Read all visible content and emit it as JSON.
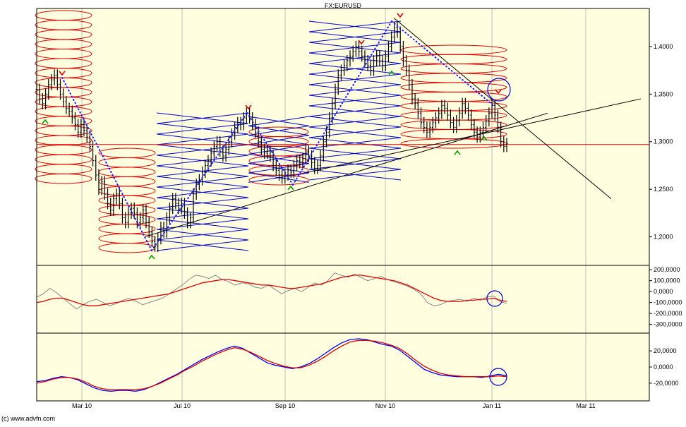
{
  "title": "FX:EURUSD",
  "footer": "(c) www.advfn.com",
  "colors": {
    "background": "#ffffe0",
    "price": "#000000",
    "ellipse": "#e00000",
    "cross": "#0000cc",
    "dots": "#1a1aff",
    "indicator_gray": "#888888",
    "indicator_red": "#e00000",
    "indicator_blue": "#0000ee",
    "marker_up": "#00a000",
    "marker_down": "#e00000",
    "circle": "#0000cc"
  },
  "chart_data": [
    {
      "type": "candlestick",
      "panel": "price",
      "title": "FX:EURUSD",
      "ylim": [
        1.17,
        1.44
      ],
      "y_ticks": [
        "1,4000",
        "1,3500",
        "1,3000",
        "1,2500",
        "1,2000"
      ],
      "x_ticks": [
        "Mar 10",
        "Jul 10",
        "Sep 10",
        "Nov 10",
        "Jan 11",
        "Mar 11"
      ],
      "series": [
        {
          "values": [
            1.355,
            1.345,
            1.34,
            1.35,
            1.36,
            1.365,
            1.37,
            1.36,
            1.35,
            1.342,
            1.335,
            1.332,
            1.325,
            1.318,
            1.31,
            1.318,
            1.312,
            1.305,
            1.295,
            1.28,
            1.265,
            1.25,
            1.258,
            1.245,
            1.235,
            1.228,
            1.24,
            1.245,
            1.235,
            1.22,
            1.215,
            1.225,
            1.23,
            1.225,
            1.215,
            1.22,
            1.228,
            1.215,
            1.205,
            1.195,
            1.19,
            1.198,
            1.21,
            1.205,
            1.22,
            1.23,
            1.24,
            1.235,
            1.23,
            1.235,
            1.225,
            1.215,
            1.22,
            1.245,
            1.255,
            1.26,
            1.268,
            1.275,
            1.28,
            1.288,
            1.295,
            1.3,
            1.29,
            1.285,
            1.292,
            1.3,
            1.308,
            1.315,
            1.32,
            1.318,
            1.325,
            1.33,
            1.325,
            1.318,
            1.31,
            1.3,
            1.292,
            1.288,
            1.29,
            1.285,
            1.275,
            1.27,
            1.265,
            1.262,
            1.265,
            1.27,
            1.268,
            1.275,
            1.28,
            1.278,
            1.282,
            1.29,
            1.285,
            1.278,
            1.272,
            1.275,
            1.285,
            1.3,
            1.31,
            1.325,
            1.34,
            1.355,
            1.37,
            1.375,
            1.38,
            1.385,
            1.39,
            1.395,
            1.4,
            1.395,
            1.39,
            1.385,
            1.38,
            1.375,
            1.385,
            1.39,
            1.385,
            1.38,
            1.39,
            1.4,
            1.41,
            1.42,
            1.415,
            1.4,
            1.385,
            1.375,
            1.36,
            1.345,
            1.34,
            1.33,
            1.32,
            1.315,
            1.31,
            1.315,
            1.32,
            1.325,
            1.33,
            1.338,
            1.335,
            1.328,
            1.32,
            1.315,
            1.322,
            1.33,
            1.34,
            1.335,
            1.328,
            1.318,
            1.31,
            1.305,
            1.31,
            1.315,
            1.322,
            1.33,
            1.338,
            1.328,
            1.315,
            1.3,
            1.295,
            1.298
          ]
        }
      ],
      "annotations": {
        "resistance_line": [
          1.2,
          1.33
        ],
        "support_line": [
          1.29,
          1.345
        ],
        "downtrend_line": [
          1.43,
          1.24
        ],
        "horizontal_line": 1.297
      }
    },
    {
      "type": "line",
      "panel": "oscillator",
      "ylim": [
        -380000,
        240000
      ],
      "y_ticks": [
        "200,0000",
        "100,0000",
        "0,0000",
        "-100,0000",
        "-200,0000",
        "-300,0000"
      ],
      "series": [
        {
          "color": "#888888",
          "values": [
            -50000,
            -20000,
            30000,
            -10000,
            -60000,
            -110000,
            -160000,
            -120000,
            -90000,
            -70000,
            -100000,
            -130000,
            -110000,
            -80000,
            -60000,
            -90000,
            -120000,
            -100000,
            -80000,
            -60000,
            -20000,
            20000,
            60000,
            110000,
            150000,
            140000,
            120000,
            150000,
            110000,
            90000,
            60000,
            80000,
            70000,
            40000,
            30000,
            60000,
            20000,
            -20000,
            10000,
            30000,
            0,
            40000,
            80000,
            60000,
            100000,
            170000,
            150000,
            130000,
            160000,
            130000,
            100000,
            120000,
            140000,
            110000,
            90000,
            70000,
            50000,
            20000,
            -20000,
            -100000,
            -130000,
            -120000,
            -90000,
            -80000,
            -70000,
            -90000,
            -60000,
            -80000,
            -50000,
            -40000,
            -90000,
            -110000
          ]
        },
        {
          "color": "#e00000",
          "values": [
            -100000,
            -90000,
            -70000,
            -60000,
            -60000,
            -80000,
            -100000,
            -120000,
            -130000,
            -130000,
            -120000,
            -110000,
            -100000,
            -90000,
            -80000,
            -70000,
            -60000,
            -50000,
            -40000,
            -30000,
            -20000,
            0,
            20000,
            40000,
            60000,
            80000,
            90000,
            100000,
            110000,
            110000,
            100000,
            90000,
            80000,
            70000,
            60000,
            60000,
            50000,
            40000,
            30000,
            30000,
            40000,
            50000,
            60000,
            70000,
            90000,
            110000,
            130000,
            140000,
            150000,
            150000,
            140000,
            130000,
            120000,
            110000,
            100000,
            80000,
            60000,
            30000,
            0,
            -30000,
            -60000,
            -80000,
            -90000,
            -90000,
            -90000,
            -80000,
            -80000,
            -70000,
            -70000,
            -60000,
            -80000,
            -90000
          ]
        }
      ]
    },
    {
      "type": "line",
      "panel": "macd",
      "ylim": [
        -42000,
        42000
      ],
      "y_ticks": [
        "20,0000",
        "0,0000",
        "-20,0000"
      ],
      "series": [
        {
          "color": "#0000ee",
          "values": [
            -18000,
            -17000,
            -14000,
            -12000,
            -13000,
            -16000,
            -21000,
            -26000,
            -29000,
            -30000,
            -29000,
            -29000,
            -30000,
            -28000,
            -24000,
            -19000,
            -14000,
            -9000,
            -3000,
            3000,
            9000,
            14000,
            19000,
            23000,
            26000,
            23000,
            17000,
            11000,
            5000,
            2000,
            0,
            -2000,
            0,
            4000,
            10000,
            17000,
            24000,
            30000,
            34000,
            35000,
            34000,
            31000,
            28000,
            26000,
            21000,
            13000,
            5000,
            -3000,
            -7000,
            -10000,
            -11000,
            -12000,
            -12000,
            -12000,
            -13000,
            -11000,
            -9000,
            -11000
          ]
        },
        {
          "color": "#e00000",
          "values": [
            -20000,
            -18000,
            -15000,
            -13000,
            -13000,
            -15000,
            -19000,
            -24000,
            -27000,
            -28000,
            -28000,
            -28000,
            -28000,
            -27000,
            -24000,
            -20000,
            -15000,
            -10000,
            -4000,
            1000,
            7000,
            12000,
            17000,
            21000,
            24000,
            22000,
            18000,
            13000,
            8000,
            4000,
            1000,
            -1000,
            -1000,
            2000,
            7000,
            13000,
            20000,
            26000,
            31000,
            33000,
            33000,
            32000,
            30000,
            27000,
            23000,
            16000,
            8000,
            1000,
            -4000,
            -8000,
            -10000,
            -11000,
            -12000,
            -12000,
            -12000,
            -12000,
            -11000,
            -12000
          ]
        }
      ]
    }
  ]
}
